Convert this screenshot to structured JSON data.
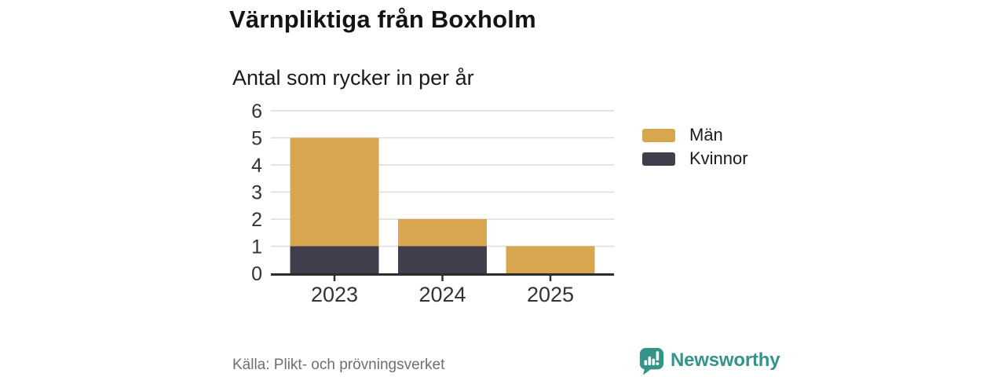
{
  "header": {
    "title": "Värnpliktiga från Boxholm",
    "subtitle": "Antal som rycker in per år"
  },
  "chart_data": {
    "type": "bar",
    "stacked": true,
    "title": "Värnpliktiga från Boxholm",
    "subtitle": "Antal som rycker in per år",
    "categories": [
      "2023",
      "2024",
      "2025"
    ],
    "series": [
      {
        "name": "Män",
        "color": "#D8A64F",
        "values": [
          4,
          1,
          1
        ]
      },
      {
        "name": "Kvinnor",
        "color": "#413D4C",
        "values": [
          1,
          1,
          0
        ]
      }
    ],
    "stack_bottom_to_top": [
      "Kvinnor",
      "Män"
    ],
    "totals": [
      5,
      2,
      1
    ],
    "xlabel": "",
    "ylabel": "",
    "ylim": [
      0,
      6
    ],
    "yticks": [
      0,
      1,
      2,
      3,
      4,
      5,
      6
    ],
    "grid": true,
    "legend_position": "right"
  },
  "footer": {
    "source": "Källa: Plikt- och prövningsverket",
    "brand": "Newsworthy"
  },
  "colors": {
    "accent_gold": "#D8A64F",
    "accent_dark": "#413D4C",
    "brand_teal": "#35938A",
    "grid": "#DCDCDC",
    "axis": "#2D2D2D",
    "tick_text": "#333333",
    "text": "#1A1A1A",
    "muted_text": "#6F6F6F"
  }
}
